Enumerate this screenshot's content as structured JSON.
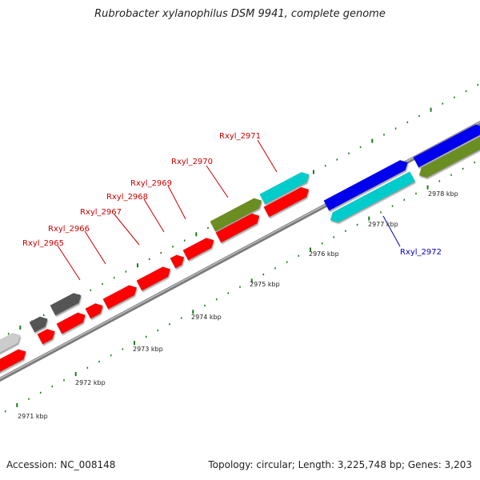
{
  "title": "Rubrobacter xylanophilus DSM 9941, complete genome",
  "footer": {
    "accession": "Accession: NC_008148",
    "summary": "Topology: circular; Length: 3,225,748 bp; Genes: 3,203"
  },
  "colors": {
    "backbone": "#808080",
    "tick": "#1a7a1a",
    "label_red": "#cc0000",
    "label_blue": "#0000cc",
    "gene_red": "#ff0000",
    "gene_blue": "#0000ee",
    "gene_cyan": "#00cccc",
    "gene_olive": "#6b8e23",
    "gene_darkgray": "#555555",
    "gene_lightgray": "#cccccc"
  },
  "scale_labels": [
    "2971 kbp",
    "2972 kbp",
    "2973 kbp",
    "2974 kbp",
    "2975 kbp",
    "2976 kbp",
    "2977 kbp",
    "2978 kbp"
  ],
  "gene_labels": {
    "rxyl_2965": "Rxyl_2965",
    "rxyl_2966": "Rxyl_2966",
    "rxyl_2967": "Rxyl_2967",
    "rxyl_2968": "Rxyl_2968",
    "rxyl_2969": "Rxyl_2969",
    "rxyl_2970": "Rxyl_2970",
    "rxyl_2971": "Rxyl_2971",
    "rxyl_2972": "Rxyl_2972"
  }
}
